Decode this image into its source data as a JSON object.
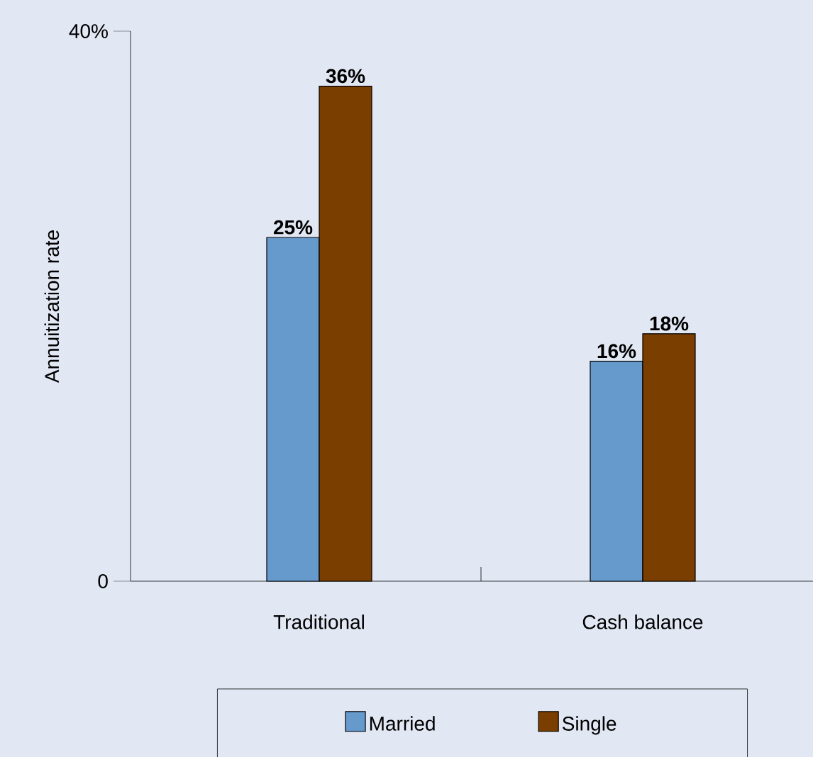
{
  "chart_data": {
    "type": "bar",
    "ylabel": "Annuitization rate",
    "categories": [
      "Traditional",
      "Cash balance"
    ],
    "series": [
      {
        "name": "Married",
        "color": "#6699cc",
        "values": [
          25,
          16
        ],
        "value_labels": [
          "25%",
          "16%"
        ]
      },
      {
        "name": "Single",
        "color": "#7a3e00",
        "values": [
          36,
          18
        ],
        "value_labels": [
          "36%",
          "18%"
        ]
      }
    ],
    "ylim": [
      0,
      40
    ],
    "yticks": [
      0,
      {
        "value": 40,
        "label": "40%"
      }
    ],
    "legend": "bottom"
  }
}
